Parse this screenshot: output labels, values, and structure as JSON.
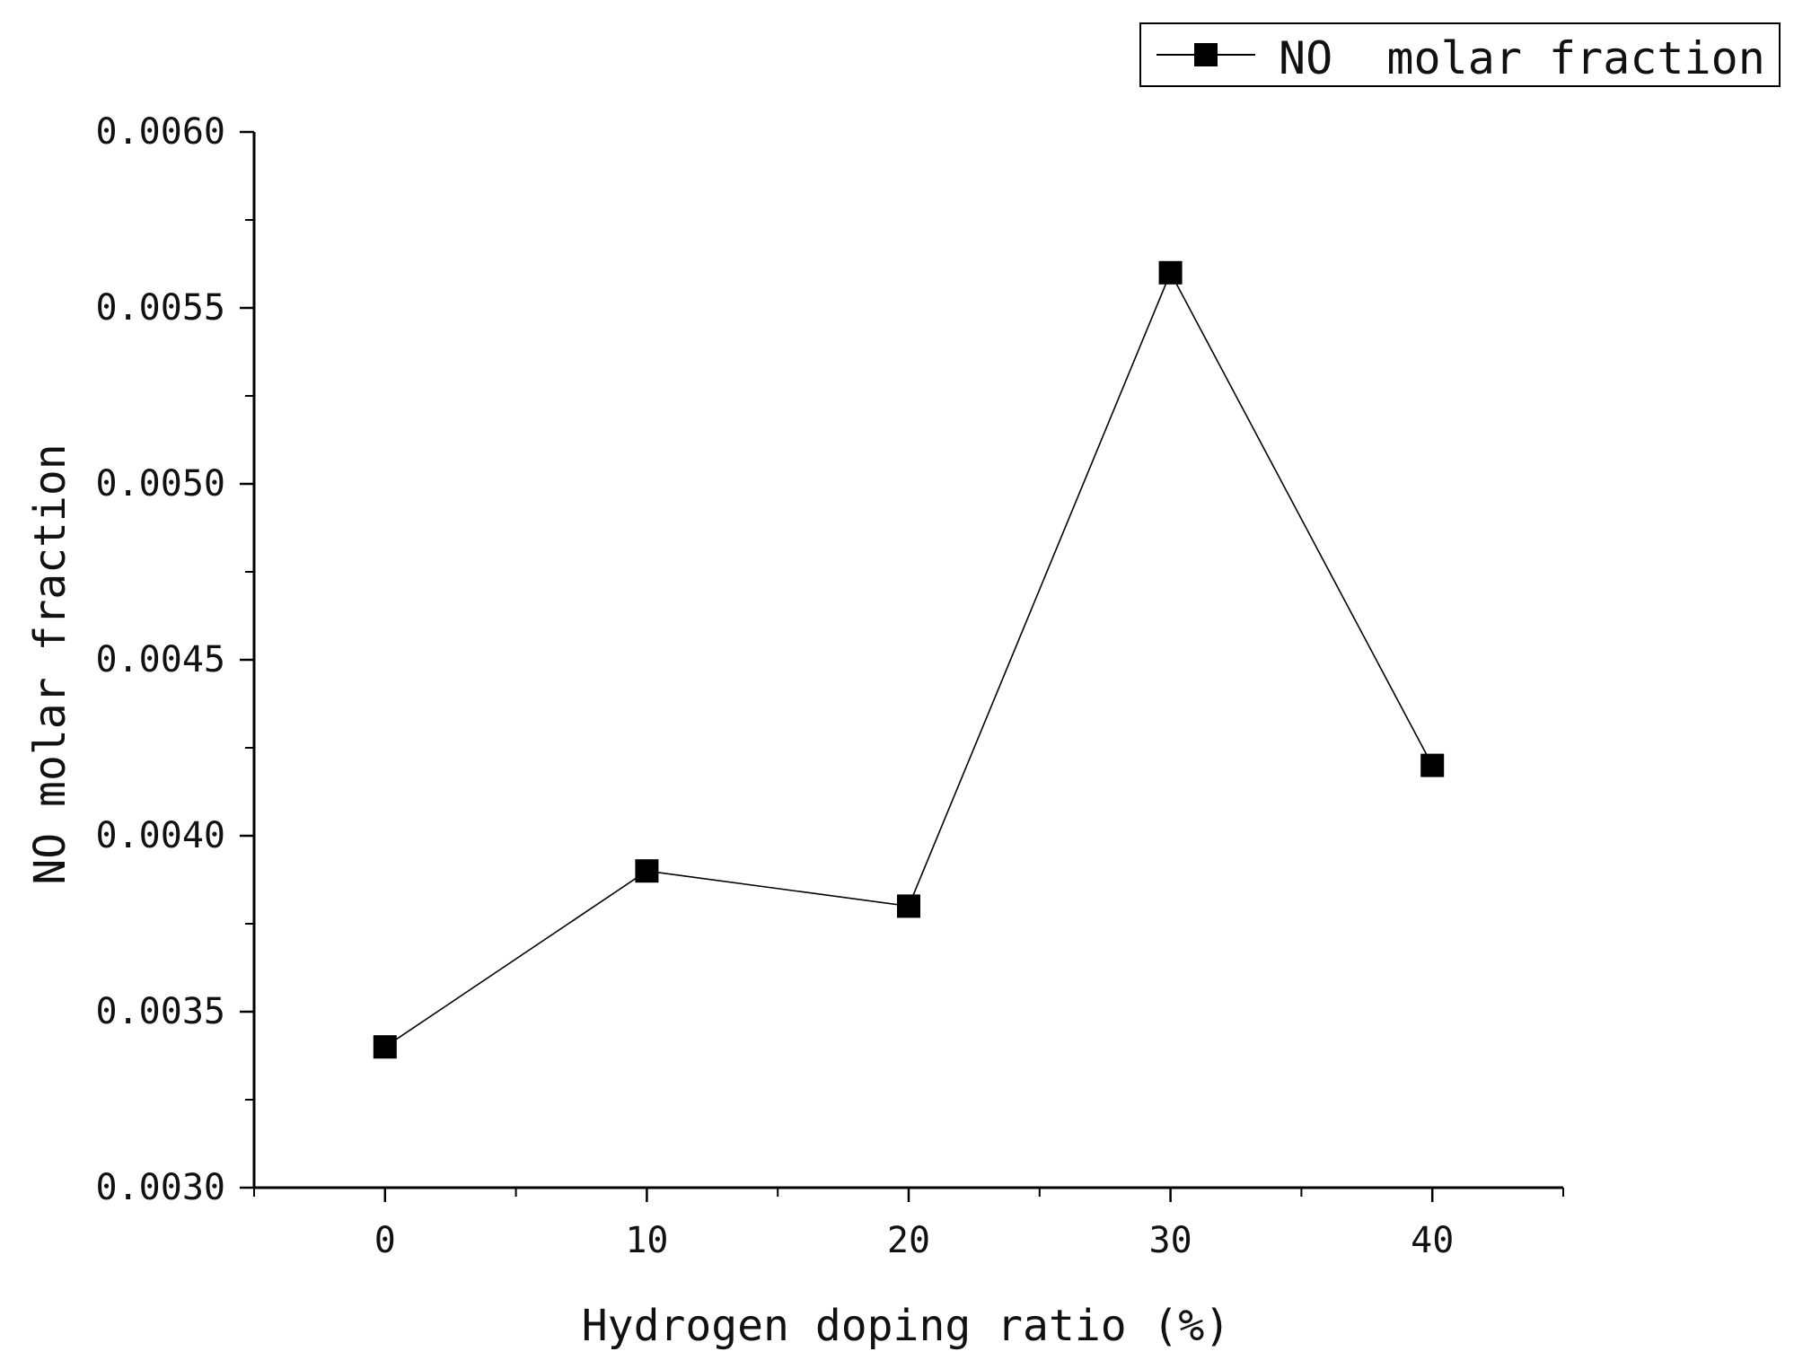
{
  "chart_data": {
    "type": "line",
    "title": "",
    "xlabel": "Hydrogen doping ratio (%)",
    "ylabel": "NO  molar fraction",
    "x": [
      0,
      10,
      20,
      30,
      40
    ],
    "series": [
      {
        "name": "NO  molar fraction",
        "values": [
          0.0034,
          0.0039,
          0.0038,
          0.0056,
          0.0042
        ],
        "color": "#000000",
        "marker": "square"
      }
    ],
    "xlim": [
      -5,
      45
    ],
    "ylim": [
      0.003,
      0.006
    ],
    "xticks": [
      "0",
      "10",
      "20",
      "30",
      "40"
    ],
    "yticks": [
      "0.0030",
      "0.0035",
      "0.0040",
      "0.0045",
      "0.0050",
      "0.0055",
      "0.0060"
    ],
    "grid": false,
    "legend_position": "top-right"
  }
}
